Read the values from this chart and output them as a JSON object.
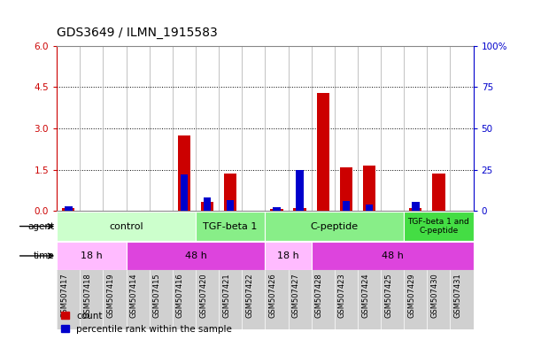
{
  "title": "GDS3649 / ILMN_1915583",
  "samples": [
    "GSM507417",
    "GSM507418",
    "GSM507419",
    "GSM507414",
    "GSM507415",
    "GSM507416",
    "GSM507420",
    "GSM507421",
    "GSM507422",
    "GSM507426",
    "GSM507427",
    "GSM507428",
    "GSM507423",
    "GSM507424",
    "GSM507425",
    "GSM507429",
    "GSM507430",
    "GSM507431"
  ],
  "count_values": [
    0.12,
    0.0,
    0.0,
    0.0,
    0.0,
    2.75,
    0.35,
    1.35,
    0.0,
    0.08,
    0.12,
    4.3,
    1.6,
    1.65,
    0.0,
    0.12,
    1.35,
    0.0
  ],
  "percentile_values": [
    3.0,
    0.0,
    0.0,
    0.0,
    0.0,
    22.0,
    8.5,
    6.5,
    0.0,
    2.5,
    25.0,
    0.0,
    6.0,
    4.0,
    0.0,
    5.5,
    0.0,
    0.0
  ],
  "ylim_left": [
    0,
    6
  ],
  "ylim_right": [
    0,
    100
  ],
  "yticks_left": [
    0,
    1.5,
    3.0,
    4.5,
    6.0
  ],
  "yticks_right": [
    0,
    25,
    50,
    75,
    100
  ],
  "count_color": "#cc0000",
  "percentile_color": "#0000cc",
  "bar_width": 0.55,
  "agent_configs": [
    {
      "label": "control",
      "start": 0,
      "end": 6,
      "color": "#ccffcc"
    },
    {
      "label": "TGF-beta 1",
      "start": 6,
      "end": 9,
      "color": "#88ee88"
    },
    {
      "label": "C-peptide",
      "start": 9,
      "end": 15,
      "color": "#88ee88"
    },
    {
      "label": "TGF-beta 1 and\nC-peptide",
      "start": 15,
      "end": 18,
      "color": "#44dd44"
    }
  ],
  "time_configs": [
    {
      "label": "18 h",
      "start": 0,
      "end": 3,
      "color": "#ffbbff"
    },
    {
      "label": "48 h",
      "start": 3,
      "end": 9,
      "color": "#dd44dd"
    },
    {
      "label": "18 h",
      "start": 9,
      "end": 11,
      "color": "#ffbbff"
    },
    {
      "label": "48 h",
      "start": 11,
      "end": 18,
      "color": "#dd44dd"
    }
  ],
  "plot_bg": "#ffffff",
  "label_bg": "#d0d0d0",
  "left_tick_color": "#cc0000",
  "right_tick_color": "#0000cc",
  "title_fontsize": 10,
  "tick_fontsize": 7.5,
  "sample_fontsize": 6,
  "row_fontsize": 8,
  "legend_fontsize": 7.5
}
